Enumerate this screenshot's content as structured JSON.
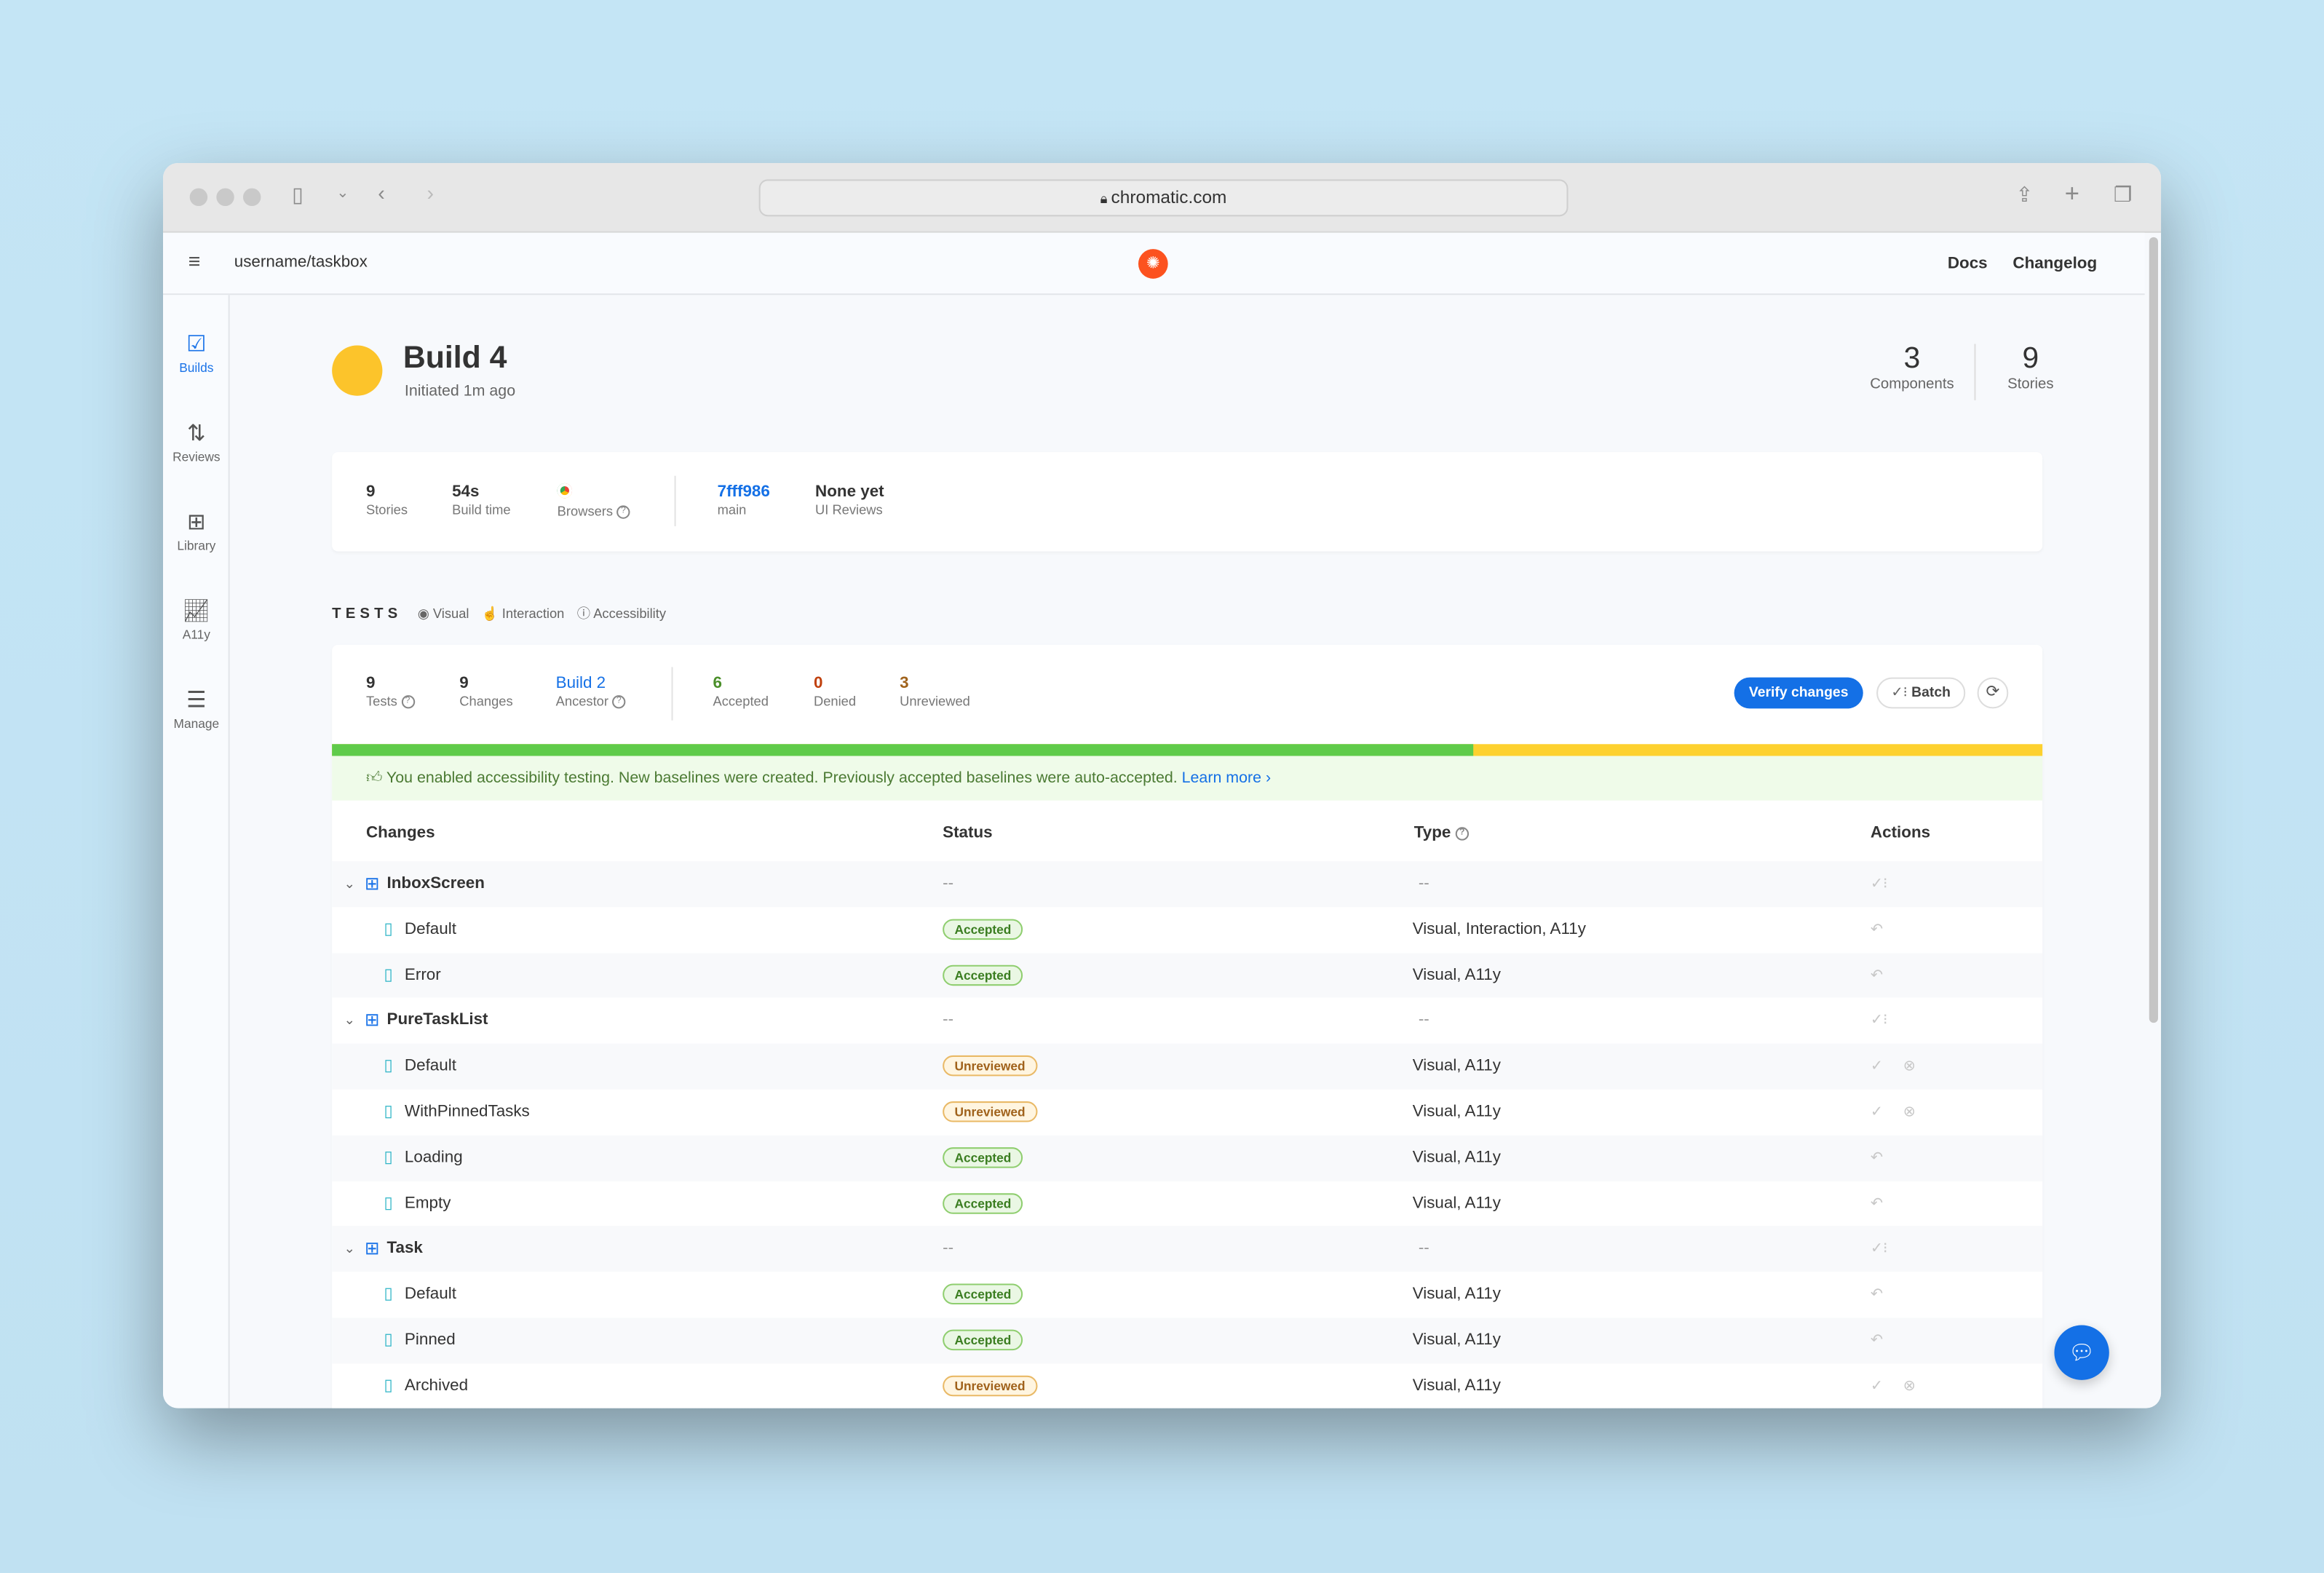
{
  "browser": {
    "url": "chromatic.com"
  },
  "header": {
    "breadcrumb_user": "username",
    "breadcrumb_sep": "/",
    "breadcrumb_project": "taskbox",
    "docs": "Docs",
    "changelog": "Changelog",
    "brand_color": "#fc521f"
  },
  "sidebar": {
    "items": [
      {
        "label": "Builds",
        "icon": "checkbox-icon",
        "active": true
      },
      {
        "label": "Reviews",
        "icon": "pull-request-icon"
      },
      {
        "label": "Library",
        "icon": "grid-icon"
      },
      {
        "label": "A11y",
        "icon": "chart-icon"
      },
      {
        "label": "Manage",
        "icon": "sliders-icon"
      }
    ]
  },
  "build": {
    "title": "Build 4",
    "subtitle": "Initiated 1m ago",
    "status_color": "#fcc42b",
    "components": "3",
    "components_label": "Components",
    "stories": "9",
    "stories_label": "Stories"
  },
  "info": {
    "stories": "9",
    "stories_label": "Stories",
    "build_time": "54s",
    "build_time_label": "Build time",
    "browsers_label": "Browsers",
    "commit": "7fff986",
    "branch": "main",
    "ui_reviews": "None yet",
    "ui_reviews_label": "UI Reviews"
  },
  "tests": {
    "heading": "TESTS",
    "types": [
      "Visual",
      "Interaction",
      "Accessibility"
    ],
    "tests": "9",
    "tests_label": "Tests",
    "changes": "9",
    "changes_label": "Changes",
    "ancestor": "Build 2",
    "ancestor_label": "Ancestor",
    "accepted": "6",
    "accepted_label": "Accepted",
    "denied": "0",
    "denied_label": "Denied",
    "unreviewed": "3",
    "unreviewed_label": "Unreviewed",
    "verify": "Verify changes",
    "batch": "Batch",
    "progress_accepted_fraction": 0.667,
    "colors": {
      "accepted": "#5fcb4a",
      "unreviewed": "#fdd12f",
      "primary": "#1470e6"
    },
    "banner": "You enabled accessibility testing. New baselines were created. Previously accepted baselines were auto-accepted.",
    "learn_more": "Learn more"
  },
  "table": {
    "headers": {
      "changes": "Changes",
      "status": "Status",
      "type": "Type",
      "actions": "Actions"
    },
    "rows": [
      {
        "kind": "group",
        "name": "InboxScreen",
        "status": "--",
        "type": "--"
      },
      {
        "kind": "story",
        "name": "Default",
        "status": "Accepted",
        "type": "Visual, Interaction, A11y"
      },
      {
        "kind": "story",
        "name": "Error",
        "status": "Accepted",
        "type": "Visual, A11y"
      },
      {
        "kind": "group",
        "name": "PureTaskList",
        "status": "--",
        "type": "--"
      },
      {
        "kind": "story",
        "name": "Default",
        "status": "Unreviewed",
        "type": "Visual, A11y"
      },
      {
        "kind": "story",
        "name": "WithPinnedTasks",
        "status": "Unreviewed",
        "type": "Visual, A11y"
      },
      {
        "kind": "story",
        "name": "Loading",
        "status": "Accepted",
        "type": "Visual, A11y"
      },
      {
        "kind": "story",
        "name": "Empty",
        "status": "Accepted",
        "type": "Visual, A11y"
      },
      {
        "kind": "group",
        "name": "Task",
        "status": "--",
        "type": "--"
      },
      {
        "kind": "story",
        "name": "Default",
        "status": "Accepted",
        "type": "Visual, A11y"
      },
      {
        "kind": "story",
        "name": "Pinned",
        "status": "Accepted",
        "type": "Visual, A11y"
      },
      {
        "kind": "story",
        "name": "Archived",
        "status": "Unreviewed",
        "type": "Visual, A11y"
      }
    ]
  }
}
